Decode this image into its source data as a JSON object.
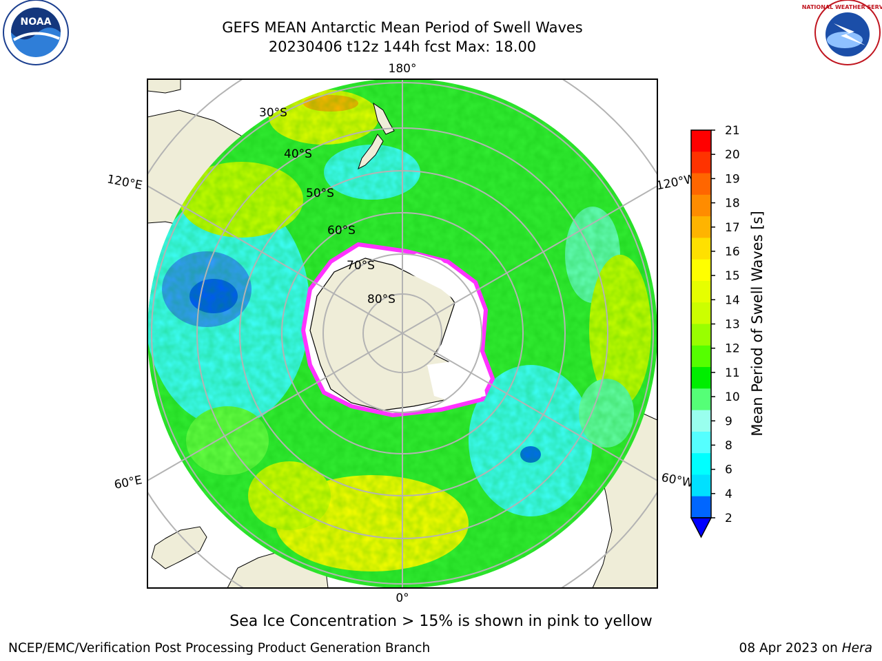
{
  "title": {
    "line1": "GEFS MEAN Antarctic Mean Period of Swell Waves",
    "line2": "20230406 t12z 144h fcst   Max: 18.00"
  },
  "map": {
    "projection": "south-polar-stereographic",
    "longitude_labels": {
      "top": "180°",
      "bottom": "0°",
      "upper_left": "120°E",
      "upper_right": "120°W",
      "lower_left": "60°E",
      "lower_right": "60°W"
    },
    "latitude_labels": [
      "30°S",
      "40°S",
      "50°S",
      "60°S",
      "70°S",
      "80°S"
    ],
    "colors": {
      "ocean_low": "#3fffff",
      "ocean_mid": "#33ff33",
      "ocean_high": "#ffff00",
      "land": "#efedd8",
      "ice_edge": "#ff33ff",
      "grid": "#b3b3b3"
    }
  },
  "colorbar": {
    "label": "Mean Period of Swell Waves [s]",
    "ticks": [
      "21",
      "20",
      "19",
      "18",
      "17",
      "16",
      "15",
      "14",
      "13",
      "12",
      "11",
      "10",
      "9",
      "8",
      "6",
      "4",
      "2"
    ],
    "colors": [
      "#ff0000",
      "#ff3300",
      "#ff6600",
      "#ff8c00",
      "#ffb400",
      "#ffe000",
      "#ffff00",
      "#e6ff00",
      "#ccff00",
      "#99ff00",
      "#55ff00",
      "#00ee00",
      "#55ff77",
      "#99ffee",
      "#55ffff",
      "#00ffff",
      "#00e0ff",
      "#0066ff"
    ],
    "under_color": "#0000ff"
  },
  "footer": {
    "note": "Sea Ice Concentration > 15% is shown in pink to yellow",
    "credit_left": "NCEP/EMC/Verification Post Processing Product Generation Branch",
    "credit_right_prefix": "08 Apr 2023 on ",
    "credit_right_host": "Hera"
  },
  "logos": {
    "noaa_text": "NOAA",
    "nws_text": "NATIONAL WEATHER SERVICE"
  }
}
